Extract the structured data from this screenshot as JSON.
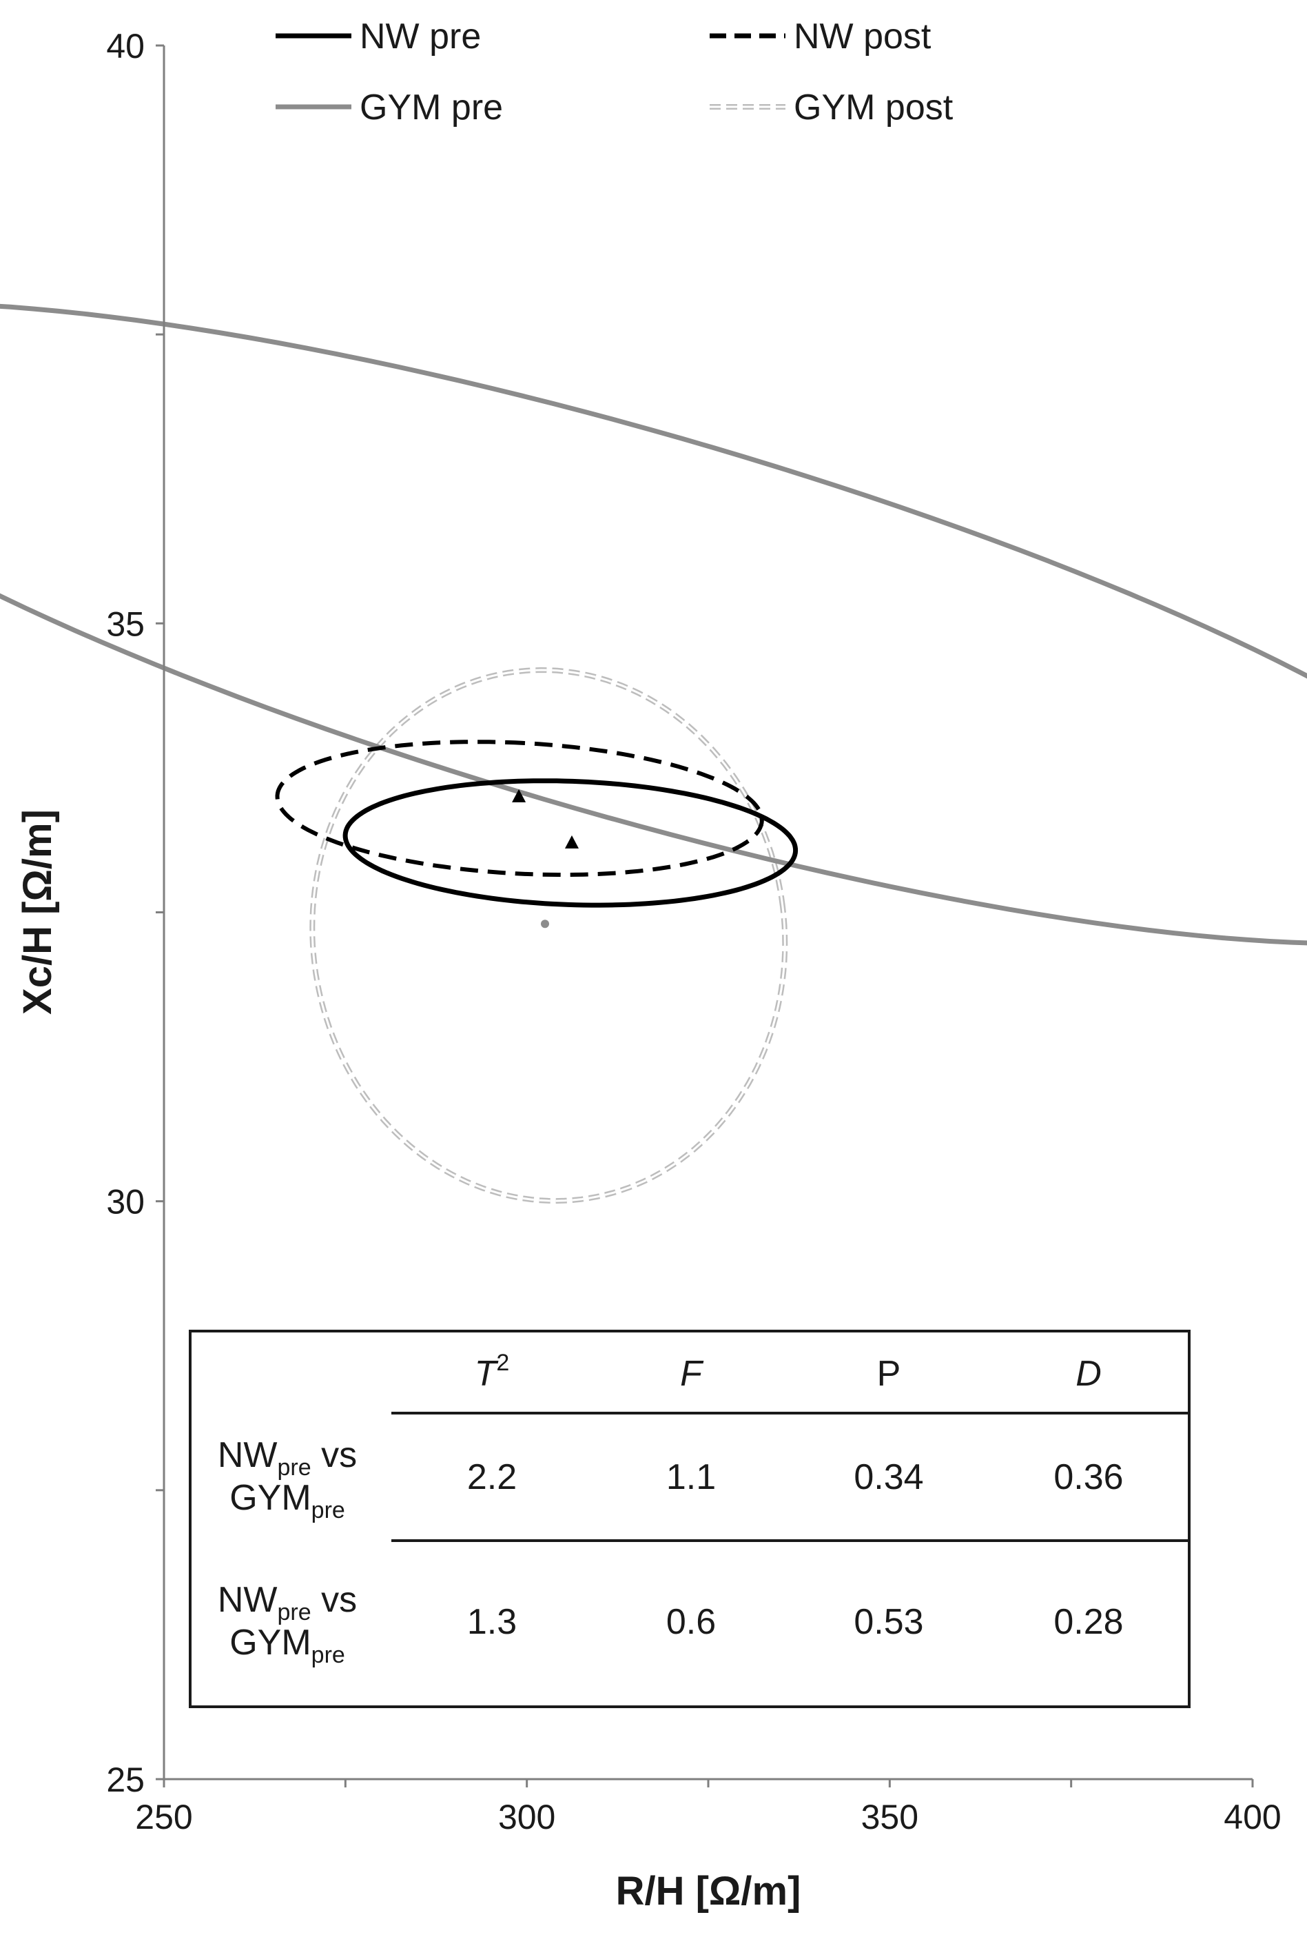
{
  "chart_data": {
    "type": "scatter",
    "title": "",
    "xlabel": "R/H [Ω/m]",
    "ylabel": "Xc/H [Ω/m]",
    "xlim": [
      250,
      400
    ],
    "ylim": [
      25,
      40
    ],
    "xticks": [
      "250",
      "300",
      "350",
      "400"
    ],
    "yticks": [
      "25",
      "30",
      "35",
      "40"
    ],
    "legend": {
      "placement": "top",
      "entries": [
        {
          "label": "NW pre",
          "color": "#000000",
          "dash": "solid"
        },
        {
          "label": "NW post",
          "color": "#000000",
          "dash": "dashed"
        },
        {
          "label": "GYM pre",
          "color": "#8c8c8c",
          "dash": "solid"
        },
        {
          "label": "GYM post",
          "color": "#bdbdbd",
          "dash": "double-dashed"
        }
      ]
    },
    "series": [
      {
        "name": "NW pre",
        "type": "ellipse",
        "center": [
          306,
          33.1
        ],
        "semi_axes": [
          8.5,
          1.95
        ],
        "angle_deg": 88,
        "color": "#000000",
        "dash": "solid"
      },
      {
        "name": "NW post",
        "type": "ellipse",
        "center": [
          299,
          33.4
        ],
        "semi_axes": [
          9.0,
          2.1
        ],
        "angle_deg": 87,
        "color": "#000000",
        "dash": "dashed"
      },
      {
        "name": "GYM pre",
        "type": "ellipse",
        "center": [
          314,
          35.0
        ],
        "semi_axes": [
          26.5,
          8.2
        ],
        "angle_deg": 74,
        "color": "#8c8c8c",
        "dash": "solid"
      },
      {
        "name": "GYM post",
        "type": "ellipse",
        "center": [
          303,
          32.3
        ],
        "semi_axes": [
          32.5,
          2.3
        ],
        "angle_deg": 7,
        "color": "#bdbdbd",
        "dash": "double-dashed"
      }
    ],
    "centroids": [
      {
        "x": 298.9,
        "y": 33.5,
        "marker": "triangle",
        "color": "#000000"
      },
      {
        "x": 306.2,
        "y": 33.1,
        "marker": "triangle",
        "color": "#000000"
      },
      {
        "x": 302.5,
        "y": 32.4,
        "marker": "circle",
        "color": "#8c8c8c"
      }
    ],
    "table": {
      "columns": [
        {
          "text": "T",
          "sup": "2",
          "italic": true
        },
        {
          "text": "F",
          "sup": "",
          "italic": true
        },
        {
          "text": "P",
          "sup": "",
          "italic": false
        },
        {
          "text": "D",
          "sup": "",
          "italic": true
        }
      ],
      "rows": [
        {
          "label": {
            "a": "NW",
            "a_sub": "pre",
            "vs": " vs",
            "b": "GYM",
            "b_sub": "pre"
          },
          "values": [
            "2.2",
            "1.1",
            "0.34",
            "0.36"
          ]
        },
        {
          "label": {
            "a": "NW",
            "a_sub": "pre",
            "vs": " vs",
            "b": "GYM",
            "b_sub": "pre"
          },
          "values": [
            "1.3",
            "0.6",
            "0.53",
            "0.28"
          ]
        }
      ]
    }
  }
}
